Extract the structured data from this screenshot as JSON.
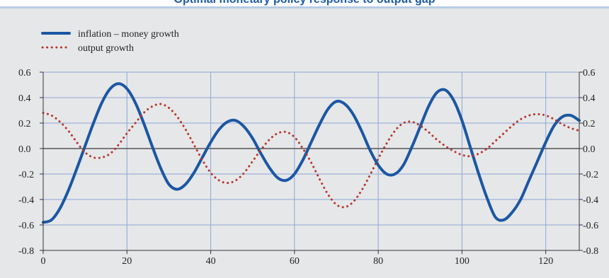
{
  "header": {
    "title": "Optimal monetary policy response to output gap"
  },
  "colors": {
    "background": "#e6e7e9",
    "grid": "#8ea6d6",
    "zero_line": "#555555",
    "series_inflation": "#1b57a3",
    "series_output": "#b5352d",
    "title": "#1c5aa6"
  },
  "chart_data": {
    "type": "line",
    "xlim": [
      0,
      128
    ],
    "ylim": [
      -0.8,
      0.6
    ],
    "x_ticks": [
      0,
      20,
      40,
      60,
      80,
      100,
      120
    ],
    "y_ticks": [
      "0.6",
      "0.4",
      "0.2",
      "0.0",
      "-0.2",
      "-0.4",
      "-0.6",
      "-0.8"
    ],
    "y_tick_values": [
      0.6,
      0.4,
      0.2,
      0.0,
      -0.2,
      -0.4,
      -0.6,
      -0.8
    ],
    "axes": "left and right y-axes mirrored",
    "grid": true,
    "legend_position": "top-left",
    "series": [
      {
        "name": "inflation – money growth",
        "style": "solid",
        "color": "#1b57a3",
        "x": [
          0,
          2,
          4,
          6,
          8,
          10,
          12,
          14,
          16,
          18,
          20,
          22,
          24,
          26,
          28,
          30,
          32,
          34,
          36,
          38,
          40,
          42,
          44,
          46,
          48,
          50,
          52,
          54,
          56,
          58,
          60,
          62,
          64,
          66,
          68,
          70,
          72,
          74,
          76,
          78,
          80,
          82,
          84,
          86,
          88,
          90,
          92,
          94,
          96,
          98,
          100,
          102,
          104,
          106,
          108,
          110,
          112,
          114,
          116,
          118,
          120,
          122,
          124,
          126,
          128
        ],
        "values": [
          -0.58,
          -0.56,
          -0.47,
          -0.33,
          -0.16,
          0.02,
          0.2,
          0.36,
          0.47,
          0.51,
          0.47,
          0.36,
          0.2,
          0.02,
          -0.15,
          -0.28,
          -0.32,
          -0.28,
          -0.19,
          -0.07,
          0.05,
          0.15,
          0.21,
          0.22,
          0.17,
          0.08,
          -0.04,
          -0.15,
          -0.23,
          -0.25,
          -0.2,
          -0.09,
          0.05,
          0.19,
          0.31,
          0.37,
          0.35,
          0.27,
          0.14,
          -0.01,
          -0.13,
          -0.2,
          -0.2,
          -0.13,
          0.01,
          0.17,
          0.33,
          0.44,
          0.46,
          0.38,
          0.22,
          0.01,
          -0.2,
          -0.39,
          -0.54,
          -0.56,
          -0.5,
          -0.4,
          -0.25,
          -0.1,
          0.05,
          0.18,
          0.25,
          0.26,
          0.22
        ]
      },
      {
        "name": "output growth",
        "style": "dotted",
        "color": "#b5352d",
        "x": [
          0,
          2,
          4,
          6,
          8,
          10,
          12,
          14,
          16,
          18,
          20,
          22,
          24,
          26,
          28,
          30,
          32,
          34,
          36,
          38,
          40,
          42,
          44,
          46,
          48,
          50,
          52,
          54,
          56,
          58,
          60,
          62,
          64,
          66,
          68,
          70,
          72,
          74,
          76,
          78,
          80,
          82,
          84,
          86,
          88,
          90,
          92,
          94,
          96,
          98,
          100,
          102,
          104,
          106,
          108,
          110,
          112,
          114,
          116,
          118,
          120,
          122,
          124,
          126,
          128
        ],
        "values": [
          0.28,
          0.26,
          0.21,
          0.14,
          0.05,
          -0.03,
          -0.07,
          -0.07,
          -0.04,
          0.03,
          0.12,
          0.2,
          0.28,
          0.33,
          0.35,
          0.32,
          0.25,
          0.15,
          0.03,
          -0.09,
          -0.19,
          -0.25,
          -0.27,
          -0.25,
          -0.19,
          -0.1,
          -0.01,
          0.07,
          0.12,
          0.13,
          0.09,
          0.0,
          -0.11,
          -0.24,
          -0.36,
          -0.44,
          -0.46,
          -0.42,
          -0.33,
          -0.21,
          -0.08,
          0.04,
          0.14,
          0.2,
          0.21,
          0.18,
          0.13,
          0.07,
          0.02,
          -0.02,
          -0.05,
          -0.06,
          -0.04,
          0.0,
          0.06,
          0.12,
          0.18,
          0.23,
          0.26,
          0.27,
          0.26,
          0.23,
          0.19,
          0.16,
          0.14
        ]
      }
    ]
  }
}
